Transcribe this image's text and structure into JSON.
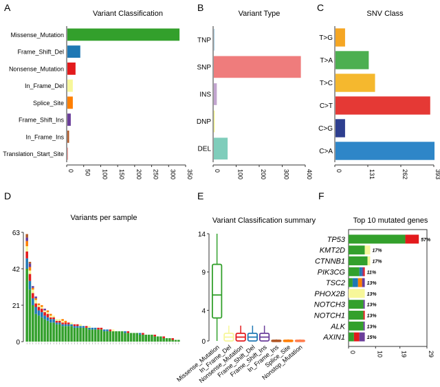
{
  "panels": {
    "A": {
      "letter": "A",
      "title": "Variant Classification"
    },
    "B": {
      "letter": "B",
      "title": "Variant Type"
    },
    "C": {
      "letter": "C",
      "title": "SNV Class"
    },
    "D": {
      "letter": "D",
      "title": "Variants per sample"
    },
    "E": {
      "letter": "E",
      "title": "Variant Classification summary"
    },
    "F": {
      "letter": "F",
      "title": "Top 10 mutated genes"
    }
  },
  "colors": {
    "Missense_Mutation": "#33a02c",
    "Frame_Shift_Del": "#1f78b4",
    "Nonsense_Mutation": "#e31a1c",
    "In_Frame_Del": "#f7f79a",
    "Splice_Site": "#ff7f00",
    "Frame_Shift_Ins": "#6a3d9a",
    "In_Frame_Ins": "#b15928",
    "Translation_Start_Site": "#fb9a99",
    "Nonstop_Mutation": "#ff7f50",
    "TNP": "#a6cee3",
    "SNP": "#ef7c7c",
    "INS": "#c2a5cf",
    "DNP": "#f2f26b",
    "DEL": "#7fcdbb",
    "T>G": "#f5a623",
    "T>A": "#4caf50",
    "T>C": "#f5b82e",
    "C>T": "#e53935",
    "C>G": "#2e3f8f",
    "C>A": "#2e86c8"
  },
  "chart_data": [
    {
      "id": "A",
      "type": "bar",
      "orientation": "horizontal",
      "title": "Variant Classification",
      "categories": [
        "Missense_Mutation",
        "Frame_Shift_Del",
        "Nonsense_Mutation",
        "In_Frame_Del",
        "Splice_Site",
        "Frame_Shift_Ins",
        "In_Frame_Ins",
        "Translation_Start_Site"
      ],
      "values": [
        330,
        38,
        24,
        16,
        16,
        10,
        5,
        2
      ],
      "ticks": [
        "0",
        "50",
        "100",
        "150",
        "200",
        "250",
        "300",
        "350"
      ],
      "xlim": [
        0,
        350
      ]
    },
    {
      "id": "B",
      "type": "bar",
      "orientation": "horizontal",
      "title": "Variant Type",
      "categories": [
        "TNP",
        "SNP",
        "INS",
        "DNP",
        "DEL"
      ],
      "values": [
        1,
        378,
        13,
        2,
        60
      ],
      "ticks": [
        "0",
        "100",
        "200",
        "300",
        "400"
      ],
      "xlim": [
        0,
        400
      ]
    },
    {
      "id": "C",
      "type": "bar",
      "orientation": "horizontal",
      "title": "SNV Class",
      "categories": [
        "T>G",
        "T>A",
        "T>C",
        "C>T",
        "C>G",
        "C>A"
      ],
      "values": [
        38,
        132,
        157,
        376,
        38,
        393
      ],
      "ticks": [
        "0",
        "131",
        "262",
        "393"
      ],
      "xlim": [
        0,
        393
      ]
    },
    {
      "id": "D",
      "type": "bar",
      "stacked": true,
      "title": "Variants per sample",
      "yticks": [
        "0",
        "21",
        "42",
        "63"
      ],
      "ylim": [
        0,
        63
      ],
      "sample_count": 52,
      "series_order": [
        "Missense_Mutation",
        "Frame_Shift_Del",
        "Nonsense_Mutation",
        "In_Frame_Del",
        "Splice_Site",
        "Frame_Shift_Ins",
        "In_Frame_Ins"
      ],
      "samples": [
        [
          42,
          6,
          4,
          3,
          3,
          2,
          2
        ],
        [
          30,
          5,
          4,
          2,
          2,
          2,
          1
        ],
        [
          21,
          4,
          3,
          2,
          1,
          1,
          0
        ],
        [
          16,
          4,
          2,
          2,
          1,
          1,
          0
        ],
        [
          15,
          3,
          2,
          1,
          1,
          0,
          0
        ],
        [
          14,
          3,
          2,
          1,
          1,
          0,
          0
        ],
        [
          13,
          2,
          2,
          1,
          0,
          1,
          0
        ],
        [
          12,
          2,
          2,
          1,
          1,
          0,
          0
        ],
        [
          11,
          2,
          1,
          1,
          1,
          0,
          0
        ],
        [
          11,
          2,
          1,
          1,
          0,
          0,
          0
        ],
        [
          10,
          1,
          1,
          1,
          0,
          0,
          0
        ],
        [
          10,
          1,
          1,
          1,
          0,
          0,
          0
        ],
        [
          9,
          1,
          1,
          1,
          1,
          0,
          0
        ],
        [
          9,
          1,
          1,
          0,
          1,
          0,
          0
        ],
        [
          9,
          1,
          1,
          0,
          0,
          0,
          0
        ],
        [
          9,
          1,
          0,
          1,
          0,
          0,
          0
        ],
        [
          8,
          1,
          1,
          0,
          0,
          0,
          0
        ],
        [
          8,
          1,
          1,
          0,
          0,
          0,
          0
        ],
        [
          8,
          1,
          0,
          1,
          0,
          0,
          0
        ],
        [
          8,
          1,
          0,
          0,
          0,
          0,
          0
        ],
        [
          8,
          0,
          1,
          0,
          0,
          0,
          0
        ],
        [
          7,
          1,
          0,
          1,
          0,
          0,
          0
        ],
        [
          7,
          1,
          0,
          0,
          0,
          0,
          0
        ],
        [
          7,
          1,
          0,
          0,
          0,
          0,
          0
        ],
        [
          7,
          0,
          1,
          0,
          0,
          0,
          0
        ],
        [
          7,
          0,
          1,
          0,
          0,
          0,
          0
        ],
        [
          6,
          1,
          0,
          0,
          0,
          0,
          0
        ],
        [
          6,
          1,
          0,
          0,
          0,
          0,
          0
        ],
        [
          6,
          0,
          1,
          0,
          0,
          0,
          0
        ],
        [
          6,
          0,
          0,
          1,
          0,
          0,
          0
        ],
        [
          6,
          0,
          0,
          0,
          0,
          0,
          0
        ],
        [
          6,
          0,
          0,
          0,
          0,
          0,
          0
        ],
        [
          6,
          0,
          0,
          0,
          0,
          0,
          0
        ],
        [
          5,
          1,
          0,
          0,
          0,
          0,
          0
        ],
        [
          5,
          0,
          1,
          0,
          0,
          0,
          0
        ],
        [
          5,
          0,
          0,
          0,
          0,
          0,
          0
        ],
        [
          5,
          0,
          0,
          0,
          0,
          0,
          0
        ],
        [
          5,
          0,
          0,
          0,
          0,
          0,
          0
        ],
        [
          4,
          1,
          0,
          0,
          0,
          0,
          0
        ],
        [
          4,
          0,
          1,
          0,
          0,
          0,
          0
        ],
        [
          4,
          0,
          0,
          0,
          0,
          0,
          0
        ],
        [
          4,
          0,
          0,
          0,
          0,
          0,
          0
        ],
        [
          4,
          0,
          0,
          0,
          0,
          0,
          0
        ],
        [
          3,
          0,
          1,
          0,
          0,
          0,
          0
        ],
        [
          3,
          0,
          0,
          0,
          0,
          0,
          0
        ],
        [
          3,
          0,
          0,
          0,
          0,
          0,
          0
        ],
        [
          2,
          0,
          1,
          0,
          0,
          0,
          0
        ],
        [
          2,
          0,
          0,
          0,
          0,
          0,
          0
        ],
        [
          2,
          0,
          0,
          0,
          0,
          0,
          0
        ],
        [
          1,
          0,
          1,
          0,
          0,
          0,
          0
        ],
        [
          1,
          0,
          0,
          0,
          0,
          0,
          0
        ],
        [
          1,
          0,
          0,
          0,
          0,
          0,
          0
        ]
      ]
    },
    {
      "id": "E",
      "type": "box",
      "title": "Variant Classification summary",
      "yticks": [
        "0",
        "4",
        "9",
        "14"
      ],
      "ylim": [
        0,
        14
      ],
      "boxes": [
        {
          "category": "Missense_Mutation",
          "min": 0,
          "q1": 3,
          "median": 6,
          "q3": 10,
          "max": 14
        },
        {
          "category": "In_Frame_Del",
          "min": 0,
          "q1": 0,
          "median": 0.5,
          "q3": 1,
          "max": 2
        },
        {
          "category": "Nonsense_Mutation",
          "min": 0,
          "q1": 0,
          "median": 0.5,
          "q3": 1,
          "max": 2
        },
        {
          "category": "Frame_Shift_Del",
          "min": 0,
          "q1": 0,
          "median": 0.5,
          "q3": 1,
          "max": 2
        },
        {
          "category": "Frame_Shift_Ins",
          "min": 0,
          "q1": 0,
          "median": 0.5,
          "q3": 1,
          "max": 2
        },
        {
          "category": "In_Frame_Ins",
          "min": 0,
          "q1": 0,
          "median": 0,
          "q3": 0.1,
          "max": 0.2
        },
        {
          "category": "Splice_Site",
          "min": 0,
          "q1": 0,
          "median": 0,
          "q3": 0.1,
          "max": 0.2
        },
        {
          "category": "Nonstop_Mutation",
          "min": 0,
          "q1": 0,
          "median": 0,
          "q3": 0.1,
          "max": 0.2
        }
      ]
    },
    {
      "id": "F",
      "type": "bar",
      "stacked": true,
      "orientation": "horizontal",
      "title": "Top 10 mutated genes",
      "xticks": [
        "0",
        "10",
        "19",
        "29"
      ],
      "xlim": [
        0,
        29
      ],
      "genes": [
        {
          "name": "TP53",
          "pct": "57%",
          "segments": [
            [
              "Missense_Mutation",
              21
            ],
            [
              "Nonsense_Mutation",
              5
            ]
          ]
        },
        {
          "name": "KMT2D",
          "pct": "17%",
          "segments": [
            [
              "Missense_Mutation",
              6
            ],
            [
              "In_Frame_Del",
              2
            ]
          ]
        },
        {
          "name": "CTNNB1",
          "pct": "17%",
          "segments": [
            [
              "Missense_Mutation",
              7
            ],
            [
              "In_Frame_Del",
              1
            ]
          ]
        },
        {
          "name": "PIK3CG",
          "pct": "11%",
          "segments": [
            [
              "Missense_Mutation",
              4
            ],
            [
              "Frame_Shift_Del",
              1
            ],
            [
              "Frame_Shift_Ins",
              0.5
            ],
            [
              "Nonsense_Mutation",
              0.5
            ]
          ]
        },
        {
          "name": "TSC2",
          "pct": "13%",
          "segments": [
            [
              "Missense_Mutation",
              1.5
            ],
            [
              "Frame_Shift_Del",
              2
            ],
            [
              "Splice_Site",
              1.5
            ],
            [
              "Frame_Shift_Ins",
              1
            ]
          ]
        },
        {
          "name": "PHOX2B",
          "pct": "13%",
          "segments": [
            [
              "In_Frame_Del",
              6
            ]
          ]
        },
        {
          "name": "NOTCH3",
          "pct": "13%",
          "segments": [
            [
              "Missense_Mutation",
              5.5
            ],
            [
              "Frame_Shift_Ins",
              0.5
            ]
          ]
        },
        {
          "name": "NOTCH1",
          "pct": "13%",
          "segments": [
            [
              "Missense_Mutation",
              5.5
            ],
            [
              "Nonsense_Mutation",
              0.5
            ]
          ]
        },
        {
          "name": "ALK",
          "pct": "13%",
          "segments": [
            [
              "Missense_Mutation",
              5.5
            ],
            [
              "Frame_Shift_Ins",
              0.5
            ]
          ]
        },
        {
          "name": "AXIN1",
          "pct": "15%",
          "segments": [
            [
              "Missense_Mutation",
              2
            ],
            [
              "Nonsense_Mutation",
              2
            ],
            [
              "Frame_Shift_Ins",
              2
            ]
          ]
        }
      ]
    }
  ]
}
